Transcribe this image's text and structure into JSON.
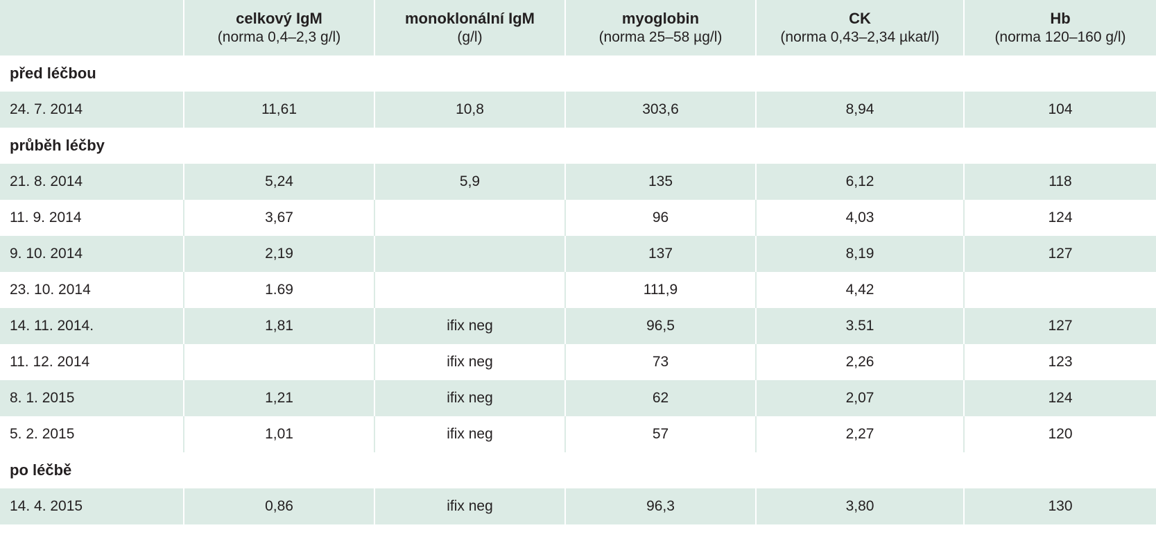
{
  "header": {
    "columns": [
      {
        "title": "",
        "sub": ""
      },
      {
        "title": "celkový IgM",
        "sub": "(norma 0,4–2,3 g/l)"
      },
      {
        "title": "monoklonální IgM",
        "sub": "(g/l)"
      },
      {
        "title": "myoglobin",
        "sub": "(norma 25–58 µg/l)"
      },
      {
        "title": "CK",
        "sub": "(norma 0,43–2,34 µkat/l)"
      },
      {
        "title": "Hb",
        "sub": "(norma 120–160 g/l)"
      }
    ]
  },
  "sections": [
    {
      "label": "před léčbou",
      "rows": [
        {
          "date": "24. 7. 2014",
          "igm": "11,61",
          "mono": "10,8",
          "myo": "303,6",
          "ck": "8,94",
          "hb": "104"
        }
      ]
    },
    {
      "label": "průběh léčby",
      "rows": [
        {
          "date": "21. 8. 2014",
          "igm": "5,24",
          "mono": "5,9",
          "myo": "135",
          "ck": "6,12",
          "hb": "118"
        },
        {
          "date": "11. 9. 2014",
          "igm": "3,67",
          "mono": "",
          "myo": "96",
          "ck": "4,03",
          "hb": "124"
        },
        {
          "date": "9. 10. 2014",
          "igm": "2,19",
          "mono": "",
          "myo": "137",
          "ck": "8,19",
          "hb": "127"
        },
        {
          "date": "23. 10. 2014",
          "igm": "1.69",
          "mono": "",
          "myo": "111,9",
          "ck": "4,42",
          "hb": ""
        },
        {
          "date": "14. 11. 2014.",
          "igm": "1,81",
          "mono": "ifix neg",
          "myo": "96,5",
          "ck": "3.51",
          "hb": "127"
        },
        {
          "date": "11. 12. 2014",
          "igm": "",
          "mono": "ifix neg",
          "myo": "73",
          "ck": "2,26",
          "hb": "123"
        },
        {
          "date": "8. 1. 2015",
          "igm": "1,21",
          "mono": "ifix neg",
          "myo": "62",
          "ck": "2,07",
          "hb": "124"
        },
        {
          "date": "5. 2. 2015",
          "igm": "1,01",
          "mono": "ifix neg",
          "myo": "57",
          "ck": "2,27",
          "hb": "120"
        }
      ]
    },
    {
      "label": "po léčbě",
      "rows": [
        {
          "date": "14. 4. 2015",
          "igm": "0,86",
          "mono": "ifix neg",
          "myo": "96,3",
          "ck": "3,80",
          "hb": "130"
        }
      ]
    }
  ]
}
